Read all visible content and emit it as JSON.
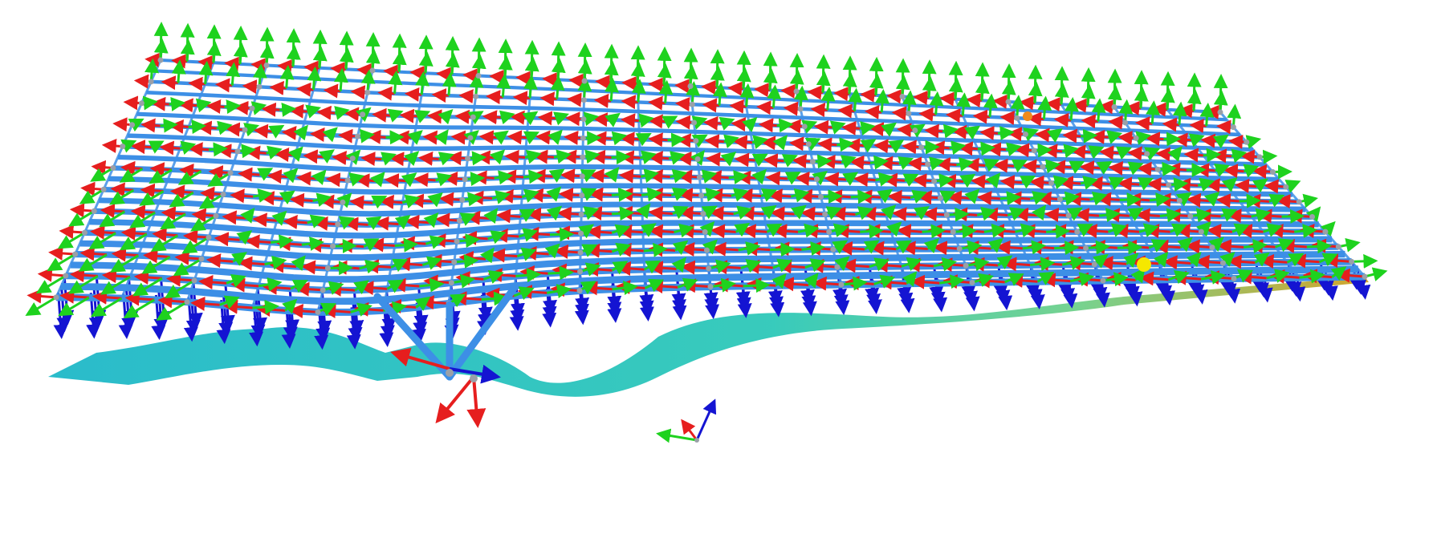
{
  "scene": {
    "description_name": "structural-mesh-local-axes-view",
    "colors": {
      "background": "#ffffff",
      "beam": "#3d8fe6",
      "axis_x": "#e61e1e",
      "axis_y": "#1ed21e",
      "axis_z": "#1414d2",
      "node": "#9aa0a8",
      "surface_low": "#1fb8c8",
      "surface_mid": "#6fd08a",
      "surface_high": "#d0a020",
      "marker_yellow": "#f5e800",
      "marker_orange": "#f08a1c"
    },
    "grid": {
      "rows": 22,
      "cols": 40
    },
    "glyphs": {
      "triad_x": "x-axis-arrow-icon",
      "triad_y": "y-axis-arrow-icon",
      "triad_z": "z-axis-arrow-icon",
      "node": "node-dot-icon"
    }
  }
}
